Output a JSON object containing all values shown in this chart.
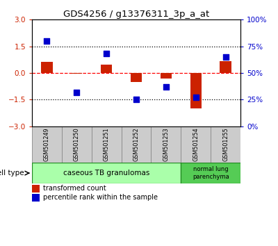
{
  "title": "GDS4256 / g13376311_3p_a_at",
  "samples": [
    "GSM501249",
    "GSM501250",
    "GSM501251",
    "GSM501252",
    "GSM501253",
    "GSM501254",
    "GSM501255"
  ],
  "red_values": [
    0.62,
    -0.05,
    0.48,
    -0.5,
    -0.3,
    -2.0,
    0.68
  ],
  "blue_pct": [
    80,
    32,
    68,
    25,
    37,
    27,
    65
  ],
  "ylim": [
    -3,
    3
  ],
  "yticks": [
    -3,
    -1.5,
    0,
    1.5,
    3
  ],
  "y2lim": [
    0,
    100
  ],
  "y2ticks": [
    0,
    25,
    50,
    75,
    100
  ],
  "y2ticklabels": [
    "0%",
    "25%",
    "50%",
    "75%",
    "100%"
  ],
  "red_color": "#cc2200",
  "blue_color": "#0000cc",
  "bar_width": 0.38,
  "group0_color": "#aaffaa",
  "group1_color": "#55cc55",
  "group0_label": "caseous TB granulomas",
  "group1_label": "normal lung\nparenchyma",
  "cell_type_label": "cell type",
  "sample_box_color": "#cccccc",
  "legend_items": [
    {
      "label": "transformed count",
      "color": "#cc2200"
    },
    {
      "label": "percentile rank within the sample",
      "color": "#0000cc"
    }
  ]
}
